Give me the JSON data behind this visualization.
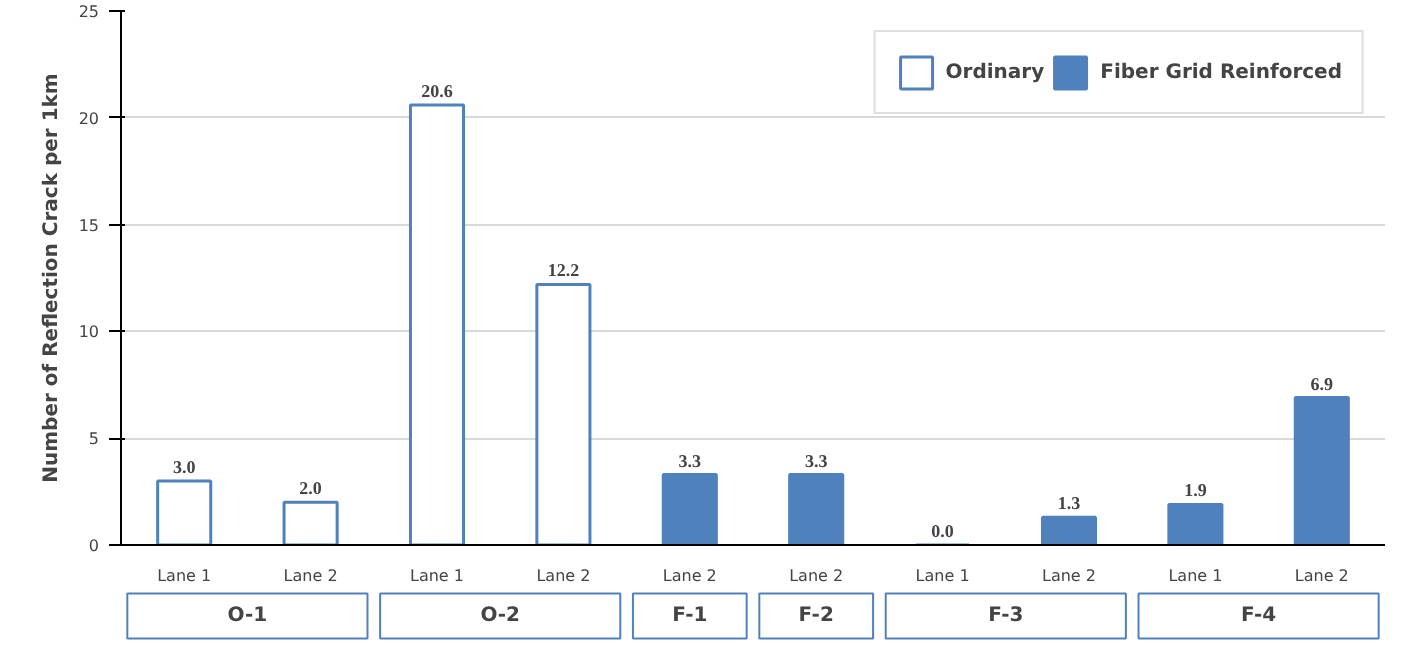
{
  "chart_data": {
    "type": "bar",
    "ylabel": "Number of Reflection Crack per 1km",
    "categories": [
      "Lane 1",
      "Lane 2",
      "Lane 1",
      "Lane 2",
      "Lane 2",
      "Lane 2",
      "Lane 1",
      "Lane 2",
      "Lane 1",
      "Lane 2"
    ],
    "series": [
      {
        "name": "Ordinary",
        "color": "#4f81bd",
        "values": [
          3.0,
          2.0,
          20.6,
          12.2,
          null,
          null,
          null,
          null,
          null,
          null
        ],
        "value_labels": [
          "3.0",
          "2.0",
          "20.6",
          "12.2",
          null,
          null,
          null,
          null,
          null,
          null
        ]
      },
      {
        "name": "Fiber Grid Reinforced",
        "color": "#4f81bd",
        "values": [
          null,
          null,
          null,
          null,
          3.3,
          3.3,
          0.0,
          1.3,
          1.9,
          6.9
        ],
        "value_labels": [
          null,
          null,
          null,
          null,
          "3.3",
          "3.3",
          "0.0",
          "1.3",
          "1.9",
          "6.9"
        ]
      }
    ],
    "ylim": [
      0,
      25
    ],
    "yticks": [
      0,
      5,
      10,
      15,
      20,
      25
    ],
    "grid": "y",
    "legend": "top right",
    "annotations": [
      "O-1",
      "O-2",
      "F-1",
      "F-2",
      "F-3",
      "F-4"
    ]
  }
}
